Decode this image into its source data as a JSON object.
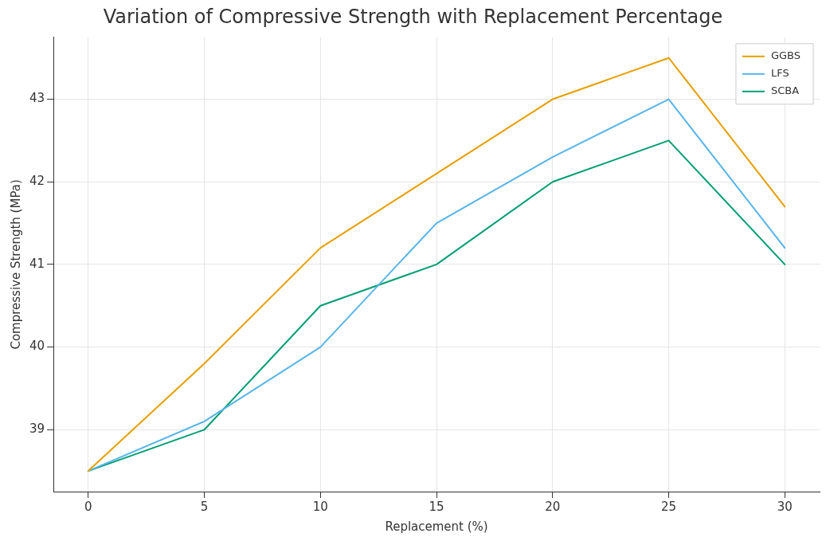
{
  "chart_data": {
    "type": "line",
    "title": "Variation of Compressive Strength with Replacement Percentage",
    "xlabel": "Replacement (%)",
    "ylabel": "Compressive Strength (MPa)",
    "x": [
      0,
      5,
      10,
      15,
      20,
      25,
      30
    ],
    "series": [
      {
        "name": "GGBS",
        "color": "#e69f00",
        "values": [
          38.5,
          39.8,
          41.2,
          42.1,
          43.0,
          43.5,
          41.7
        ]
      },
      {
        "name": "LFS",
        "color": "#56b4e9",
        "values": [
          38.5,
          39.1,
          40.0,
          41.5,
          42.3,
          43.0,
          41.2
        ]
      },
      {
        "name": "SCBA",
        "color": "#009e73",
        "values": [
          38.5,
          39.0,
          40.5,
          41.0,
          42.0,
          42.5,
          41.0
        ]
      }
    ],
    "xlim": [
      -1.5,
      31.5
    ],
    "xticks": [
      0,
      5,
      10,
      15,
      20,
      25,
      30
    ],
    "ylim": [
      38.25,
      43.75
    ],
    "yticks": [
      39,
      40,
      41,
      42,
      43
    ],
    "grid": true,
    "legend": "top right",
    "marker": "none",
    "line_style": "solid"
  }
}
